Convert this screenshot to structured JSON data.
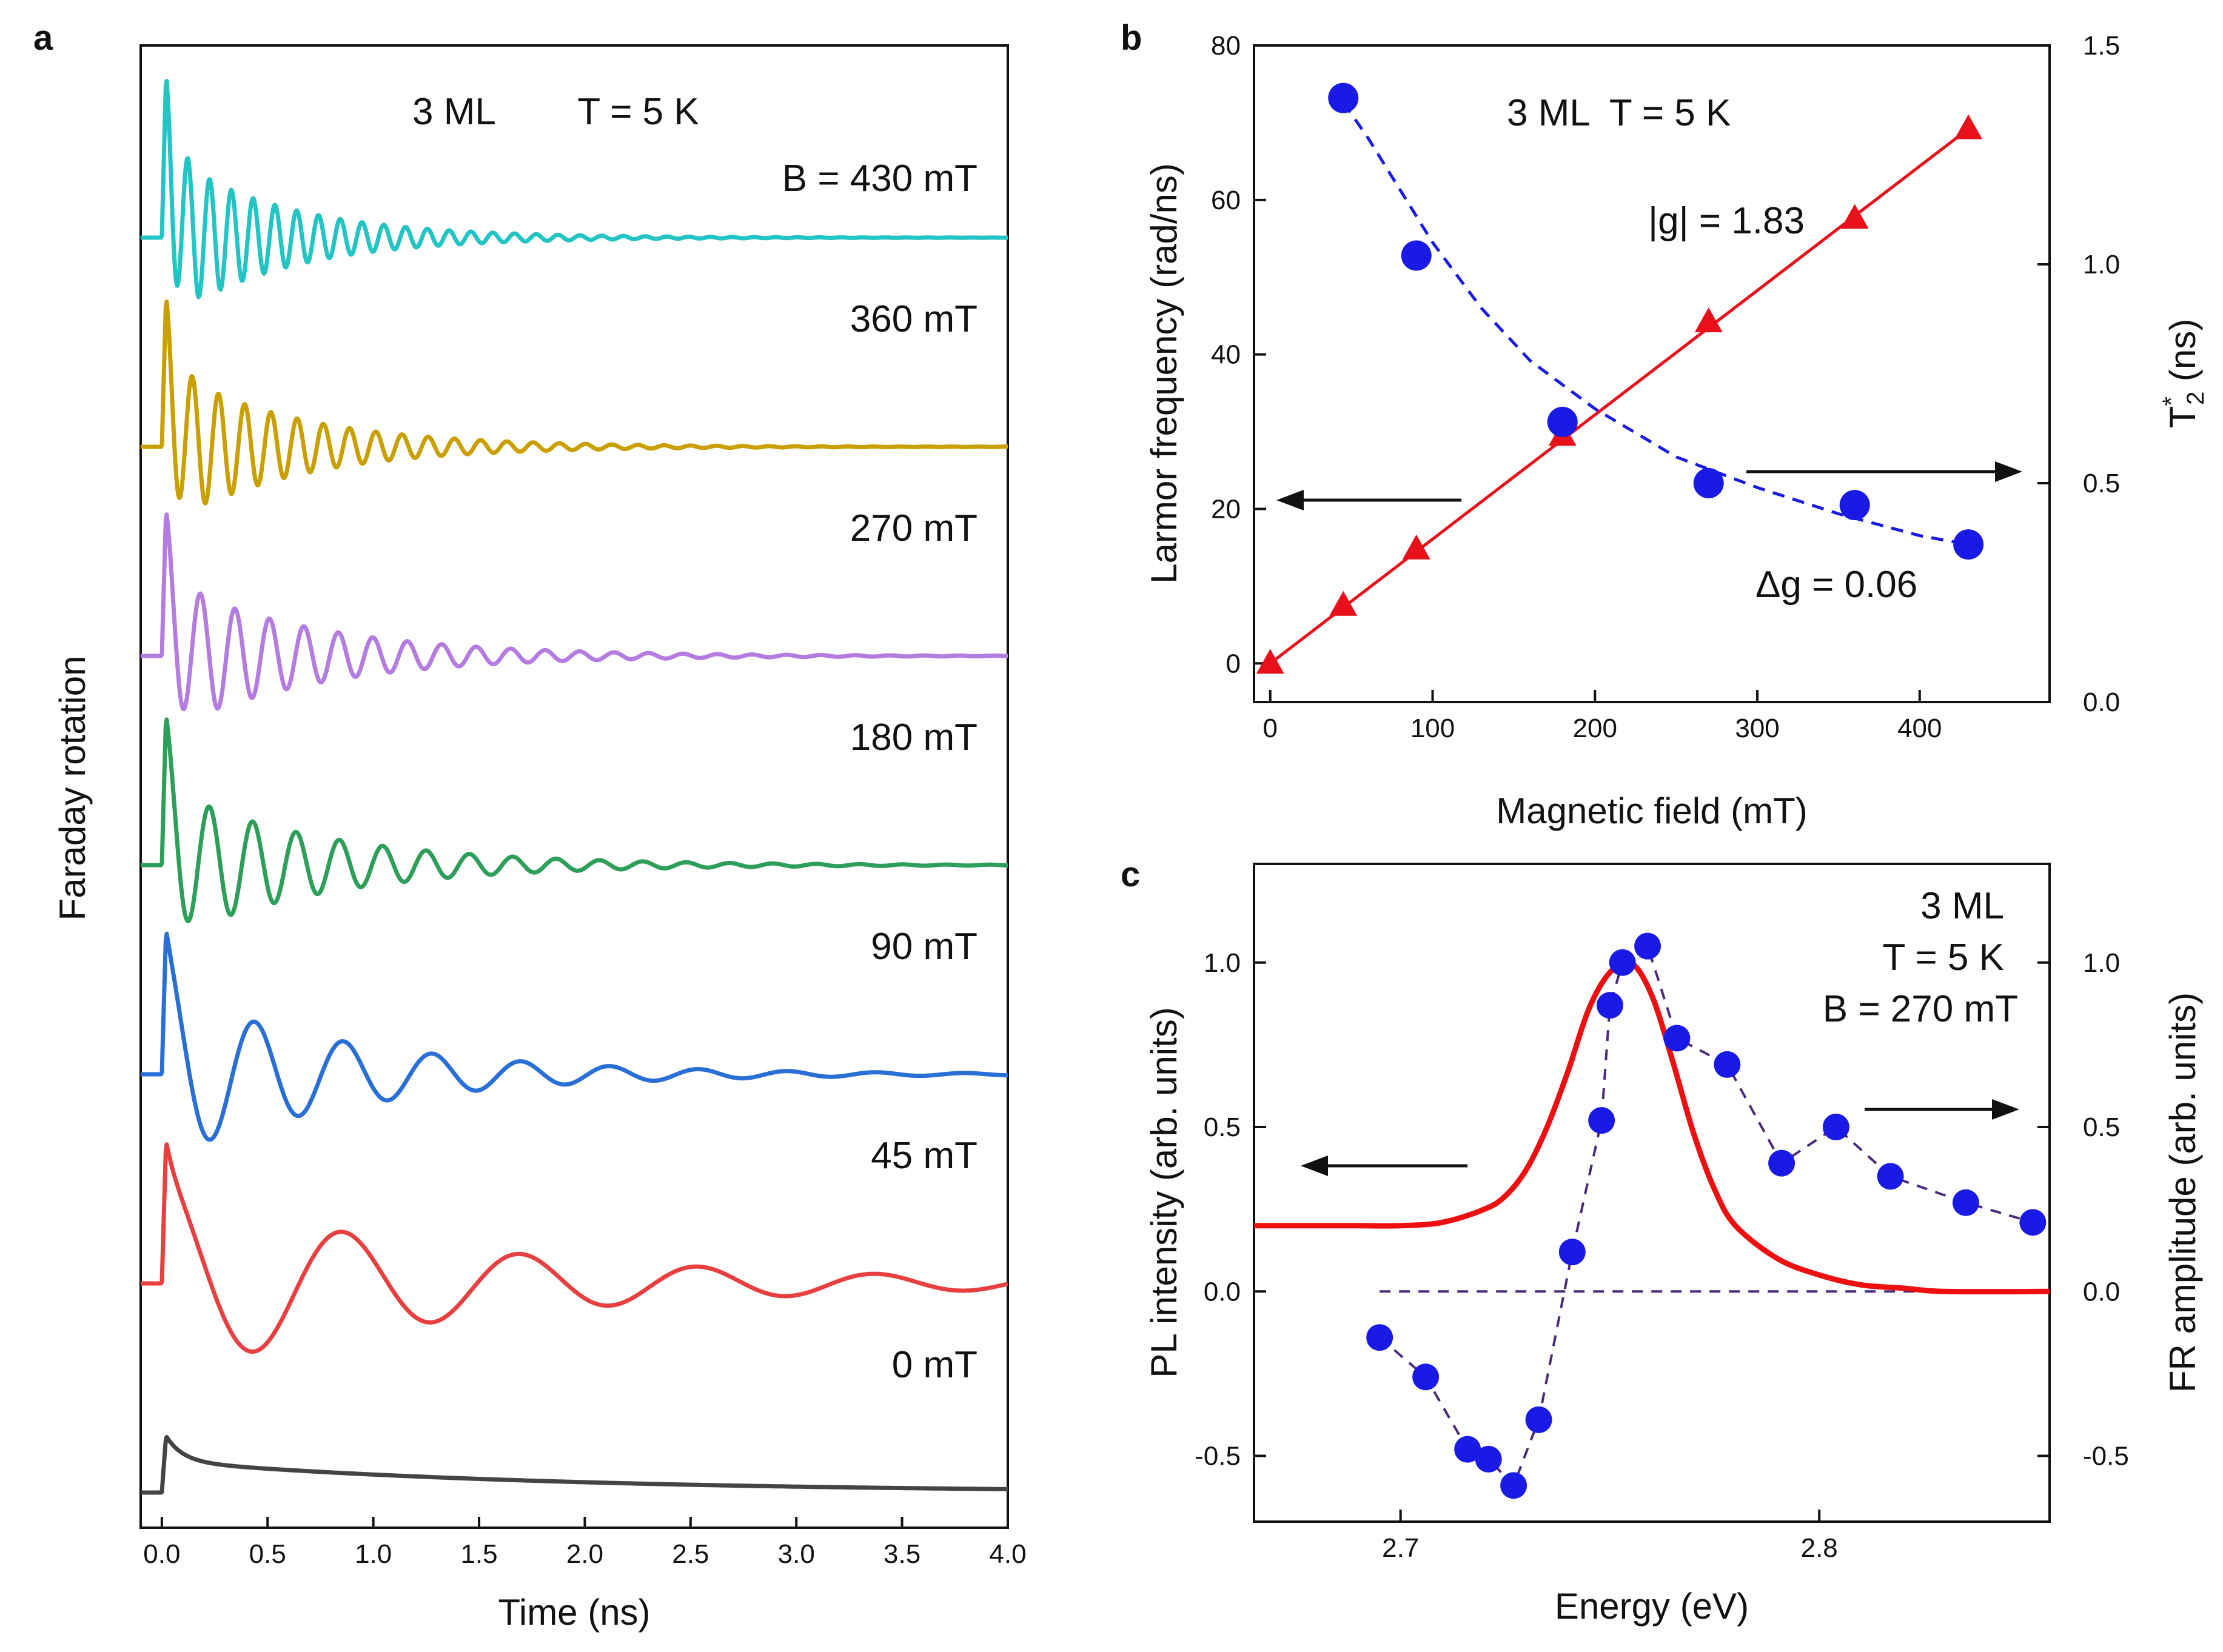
{
  "panel_labels": {
    "a": "a",
    "b": "b",
    "c": "c"
  },
  "chart_data": [
    {
      "panel": "a",
      "type": "line",
      "title": "3 ML        T = 5 K",
      "xlabel": "Time (ns)",
      "ylabel": "Faraday rotation",
      "xlim": [
        -0.1,
        4.0
      ],
      "xticks": [
        0.0,
        0.5,
        1.0,
        1.5,
        2.0,
        2.5,
        3.0,
        3.5,
        4.0
      ],
      "xtick_labels": [
        "0.0",
        "0.5",
        "1.0",
        "1.5",
        "2.0",
        "2.5",
        "3.0",
        "3.5",
        "4.0"
      ],
      "series": [
        {
          "name": "B = 430 mT",
          "label": "B = 430 mT",
          "field_mT": 430,
          "color": "#22C4C4",
          "baseline_offset": 6,
          "peak": 0.78,
          "amp": 0.4,
          "period_ns": 0.103,
          "decay_ns": 0.55,
          "phase": 1.9,
          "tail": 0
        },
        {
          "name": "360 mT",
          "label": "360 mT",
          "field_mT": 360,
          "color": "#C9A000",
          "baseline_offset": 5,
          "peak": 0.72,
          "amp": 0.38,
          "period_ns": 0.124,
          "decay_ns": 0.6,
          "phase": 1.9,
          "tail": 0
        },
        {
          "name": "270 mT",
          "label": "270 mT",
          "field_mT": 270,
          "color": "#B47CE0",
          "baseline_offset": 4,
          "peak": 0.7,
          "amp": 0.36,
          "period_ns": 0.163,
          "decay_ns": 0.7,
          "phase": 1.9,
          "tail": 0
        },
        {
          "name": "180 mT",
          "label": "180 mT",
          "field_mT": 180,
          "color": "#2E9E5B",
          "baseline_offset": 3,
          "peak": 0.72,
          "amp": 0.36,
          "period_ns": 0.205,
          "decay_ns": 0.75,
          "phase": 1.9,
          "tail": 0
        },
        {
          "name": "90 mT",
          "label": "90 mT",
          "field_mT": 90,
          "color": "#2A6FD6",
          "baseline_offset": 2,
          "peak": 0.69,
          "amp": 0.4,
          "period_ns": 0.42,
          "decay_ns": 0.9,
          "phase": 1.9,
          "tail": 0
        },
        {
          "name": "45 mT",
          "label": "45 mT",
          "field_mT": 45,
          "color": "#E84040",
          "baseline_offset": 1,
          "peak": 0.68,
          "amp": 0.43,
          "period_ns": 0.84,
          "decay_ns": 1.5,
          "phase": 1.9,
          "tail": 0
        },
        {
          "name": "0 mT",
          "label": "0 mT",
          "field_mT": 0,
          "color": "#444444",
          "baseline_offset": 0,
          "peak": 0.27,
          "amp": 0,
          "period_ns": 1,
          "decay_ns": 1,
          "phase": 0,
          "tail": 0.2
        }
      ]
    },
    {
      "panel": "b",
      "type": "scatter",
      "title": "3 ML  T = 5 K",
      "xlabel": "Magnetic field (mT)",
      "ylabel": "Larmor frequency (rad/ns)",
      "ylabel_right": "T",
      "ylabel_right_sup": "*",
      "ylabel_right_sub": "2",
      "ylabel_right_unit": " (ns)",
      "xlim": [
        -10,
        480
      ],
      "ylim": [
        -5,
        80
      ],
      "ylim_right": [
        0.0,
        1.5
      ],
      "xticks": [
        0,
        100,
        200,
        300,
        400
      ],
      "xtick_labels": [
        "0",
        "100",
        "200",
        "300",
        "400"
      ],
      "yticks": [
        0,
        20,
        40,
        60,
        80
      ],
      "ytick_labels": [
        "0",
        "20",
        "40",
        "60",
        "80"
      ],
      "yticks_right": [
        0.0,
        0.5,
        1.0,
        1.5
      ],
      "ytick_right_labels": [
        "0.0",
        "0.5",
        "1.0",
        "1.5"
      ],
      "series": [
        {
          "name": "Larmor frequency",
          "axis": "left",
          "marker": "triangle",
          "color": "#E8101A",
          "x": [
            0,
            45,
            90,
            180,
            270,
            360,
            430
          ],
          "y": [
            0,
            7.5,
            14.8,
            29.5,
            44.2,
            57.6,
            69.2
          ]
        },
        {
          "name": "Linear fit |g| = 1.83",
          "axis": "left",
          "style": "solid-line",
          "color": "#E8101A",
          "x": [
            0,
            430
          ],
          "y": [
            0,
            69.2
          ]
        },
        {
          "name": "T2*",
          "axis": "right",
          "marker": "circle",
          "color": "#1A1AE6",
          "x": [
            45,
            90,
            180,
            270,
            360,
            430
          ],
          "y": [
            1.38,
            1.02,
            0.64,
            0.5,
            0.45,
            0.36
          ]
        },
        {
          "name": "T2* fit",
          "axis": "right",
          "style": "dashed-line",
          "color": "#1A1AE6",
          "x": [
            45,
            60,
            80,
            100,
            130,
            160,
            200,
            250,
            300,
            350,
            400,
            430
          ],
          "y": [
            1.37,
            1.29,
            1.17,
            1.05,
            0.9,
            0.78,
            0.67,
            0.56,
            0.49,
            0.43,
            0.38,
            0.36
          ]
        }
      ],
      "annotations": [
        "|g| = 1.83",
        "Δg = 0.06"
      ]
    },
    {
      "panel": "c",
      "type": "line",
      "title": "3 ML",
      "subtitle_lines": [
        "3 ML",
        "T = 5 K",
        "B = 270 mT"
      ],
      "xlabel": "Energy (eV)",
      "ylabel": "PL intensity (arb. units)",
      "ylabel_right": "FR amplitude (arb. units)",
      "xlim": [
        2.665,
        2.855
      ],
      "ylim": [
        -0.7,
        1.3
      ],
      "ylim_right": [
        -0.7,
        1.3
      ],
      "xticks": [
        2.7,
        2.8
      ],
      "xtick_labels": [
        "2.7",
        "2.8"
      ],
      "yticks": [
        -0.5,
        0.0,
        0.5,
        1.0
      ],
      "ytick_labels": [
        "-0.5",
        "0.0",
        "0.5",
        "1.0"
      ],
      "yticks_right": [
        -0.5,
        0.0,
        0.5,
        1.0
      ],
      "ytick_right_labels": [
        "-0.5",
        "0.0",
        "0.5",
        "1.0"
      ],
      "series": [
        {
          "name": "PL intensity",
          "axis": "left",
          "color": "#EE1010",
          "x": [
            2.665,
            2.68,
            2.69,
            2.7,
            2.71,
            2.72,
            2.725,
            2.73,
            2.735,
            2.74,
            2.745,
            2.75,
            2.755,
            2.76,
            2.765,
            2.77,
            2.775,
            2.78,
            2.79,
            2.8,
            2.81,
            2.82,
            2.83,
            2.855
          ],
          "y": [
            0.2,
            0.2,
            0.2,
            0.2,
            0.21,
            0.25,
            0.29,
            0.37,
            0.5,
            0.67,
            0.86,
            0.97,
            1.0,
            0.9,
            0.7,
            0.48,
            0.31,
            0.2,
            0.1,
            0.05,
            0.02,
            0.01,
            0.0,
            0.0
          ]
        },
        {
          "name": "FR amplitude",
          "axis": "right",
          "marker": "circle",
          "style": "dashed-line",
          "color": "#1A1AE6",
          "line_color": "#4B2A7A",
          "x": [
            2.695,
            2.706,
            2.716,
            2.721,
            2.727,
            2.733,
            2.741,
            2.748,
            2.75,
            2.753,
            2.759,
            2.766,
            2.778,
            2.791,
            2.804,
            2.817,
            2.835,
            2.851
          ],
          "y": [
            -0.14,
            -0.26,
            -0.48,
            -0.51,
            -0.59,
            -0.39,
            0.12,
            0.52,
            0.87,
            1.0,
            1.05,
            0.77,
            0.69,
            0.39,
            0.5,
            0.35,
            0.27,
            0.21
          ]
        },
        {
          "name": "Zero line",
          "axis": "right",
          "style": "dashed-line",
          "color": "#4B2A7A",
          "x": [
            2.695,
            2.855
          ],
          "y": [
            0,
            0
          ]
        }
      ]
    }
  ]
}
